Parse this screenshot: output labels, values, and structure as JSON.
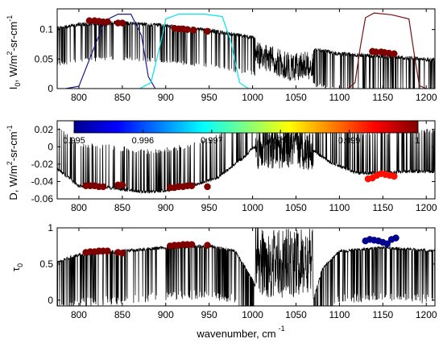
{
  "figure": {
    "xlabel": "wavenumber, cm",
    "xlabel_exp": "-1"
  },
  "chart_data": [
    {
      "type": "line",
      "panel": "top",
      "ylabel": "I₀, W/m²-sr-cm⁻¹",
      "ylabel_parts": [
        "I",
        "0",
        ", W/m",
        "2",
        "-sr-cm",
        "-1"
      ],
      "xlim": [
        775,
        1210
      ],
      "ylim": [
        0,
        0.135
      ],
      "xticks": [
        "800",
        "850",
        "900",
        "950",
        "1000",
        "1050",
        "1100",
        "1150",
        "1200"
      ],
      "yticks": [
        "0",
        "0.05",
        "0.1"
      ],
      "ytick_values": [
        0,
        0.05,
        0.1
      ],
      "series": [
        {
          "kind": "spectrum",
          "color": "#000000",
          "points": [
            [
              775,
              0.105
            ],
            [
              800,
              0.112
            ],
            [
              850,
              0.115
            ],
            [
              900,
              0.11
            ],
            [
              950,
              0.102
            ],
            [
              1000,
              0.09
            ],
            [
              1030,
              0.075
            ],
            [
              1045,
              0.065
            ],
            [
              1060,
              0.07
            ],
            [
              1080,
              0.068
            ],
            [
              1100,
              0.062
            ],
            [
              1150,
              0.058
            ],
            [
              1210,
              0.052
            ]
          ]
        },
        {
          "kind": "filter",
          "color": "#1a1a8c",
          "points": [
            [
              785,
              0.0
            ],
            [
              800,
              0.004
            ],
            [
              815,
              0.06
            ],
            [
              830,
              0.115
            ],
            [
              845,
              0.126
            ],
            [
              860,
              0.126
            ],
            [
              872,
              0.09
            ],
            [
              880,
              0.02
            ],
            [
              888,
              0.0
            ]
          ]
        },
        {
          "kind": "filter",
          "color": "#00e5ee",
          "points": [
            [
              870,
              0.0
            ],
            [
              883,
              0.01
            ],
            [
              893,
              0.07
            ],
            [
              900,
              0.118
            ],
            [
              915,
              0.126
            ],
            [
              945,
              0.126
            ],
            [
              965,
              0.122
            ],
            [
              975,
              0.08
            ],
            [
              985,
              0.01
            ],
            [
              995,
              0.0
            ]
          ]
        },
        {
          "kind": "filter",
          "color": "#7a1010",
          "points": [
            [
              1110,
              0.0
            ],
            [
              1118,
              0.01
            ],
            [
              1124,
              0.07
            ],
            [
              1130,
              0.12
            ],
            [
              1140,
              0.128
            ],
            [
              1160,
              0.125
            ],
            [
              1180,
              0.118
            ],
            [
              1186,
              0.06
            ],
            [
              1192,
              0.005
            ],
            [
              1200,
              0.0
            ]
          ]
        }
      ],
      "markers": {
        "color_value": 1,
        "points": [
          [
            812,
            0.115
          ],
          [
            818,
            0.115
          ],
          [
            823,
            0.114
          ],
          [
            828,
            0.113
          ],
          [
            833,
            0.113
          ],
          [
            845,
            0.111
          ],
          [
            850,
            0.111
          ],
          [
            910,
            0.102
          ],
          [
            915,
            0.101
          ],
          [
            920,
            0.101
          ],
          [
            925,
            0.1
          ],
          [
            932,
            0.099
          ],
          [
            948,
            0.097
          ],
          [
            1138,
            0.063
          ],
          [
            1142,
            0.062
          ],
          [
            1148,
            0.062
          ],
          [
            1152,
            0.061
          ],
          [
            1157,
            0.06
          ],
          [
            1163,
            0.059
          ]
        ]
      }
    },
    {
      "type": "line",
      "panel": "middle",
      "ylabel": "D, W/m²-sr-cm⁻¹",
      "ylabel_parts": [
        "D, W/m",
        "2",
        "-sr-cm",
        "-1"
      ],
      "xlim": [
        775,
        1210
      ],
      "ylim": [
        -0.06,
        0.03
      ],
      "xticks": [
        "800",
        "850",
        "900",
        "950",
        "1000",
        "1050",
        "1100",
        "1150",
        "1200"
      ],
      "yticks": [
        "-0.06",
        "-0.04",
        "-0.02",
        "0",
        "0.02"
      ],
      "ytick_values": [
        -0.06,
        -0.04,
        -0.02,
        0,
        0.02
      ],
      "series": [
        {
          "kind": "spectrum",
          "color": "#000000",
          "points": [
            [
              775,
              -0.025
            ],
            [
              800,
              -0.045
            ],
            [
              830,
              -0.046
            ],
            [
              860,
              -0.05
            ],
            [
              880,
              -0.052
            ],
            [
              900,
              -0.05
            ],
            [
              930,
              -0.045
            ],
            [
              960,
              -0.035
            ],
            [
              990,
              -0.012
            ],
            [
              1000,
              -0.001
            ],
            [
              1050,
              0.0
            ],
            [
              1070,
              -0.004
            ],
            [
              1090,
              -0.018
            ],
            [
              1120,
              -0.03
            ],
            [
              1150,
              -0.03
            ],
            [
              1180,
              -0.028
            ],
            [
              1210,
              -0.028
            ]
          ]
        }
      ],
      "markers_low": {
        "color_value": 1,
        "points": [
          [
            808,
            -0.045
          ],
          [
            813,
            -0.045
          ],
          [
            818,
            -0.045
          ],
          [
            823,
            -0.046
          ],
          [
            828,
            -0.046
          ],
          [
            845,
            -0.044
          ],
          [
            850,
            -0.044
          ],
          [
            905,
            -0.047
          ],
          [
            910,
            -0.047
          ],
          [
            915,
            -0.046
          ],
          [
            920,
            -0.046
          ],
          [
            925,
            -0.045
          ],
          [
            930,
            -0.045
          ],
          [
            948,
            -0.046
          ]
        ]
      },
      "markers_high": {
        "color_value": 0.9993,
        "points": [
          [
            1133,
            -0.037
          ],
          [
            1138,
            -0.036
          ],
          [
            1143,
            -0.033
          ],
          [
            1148,
            -0.031
          ],
          [
            1153,
            -0.032
          ],
          [
            1158,
            -0.033
          ],
          [
            1163,
            -0.034
          ]
        ]
      },
      "colorbar": {
        "range": [
          0.995,
          1.0
        ],
        "ticks": [
          "0.995",
          "0.996",
          "0.997",
          "0.998",
          "0.999",
          "1"
        ],
        "tick_values": [
          0.995,
          0.996,
          0.997,
          0.998,
          0.999,
          1.0
        ]
      }
    },
    {
      "type": "line",
      "panel": "bottom",
      "ylabel": "τ₀",
      "ylabel_parts": [
        "τ",
        "0"
      ],
      "xlim": [
        775,
        1210
      ],
      "ylim": [
        -0.08,
        1.0
      ],
      "xticks": [
        "800",
        "850",
        "900",
        "950",
        "1000",
        "1050",
        "1100",
        "1150",
        "1200"
      ],
      "yticks": [
        "0",
        "0.5",
        "1"
      ],
      "ytick_values": [
        0,
        0.5,
        1
      ],
      "series": [
        {
          "kind": "spectrum",
          "color": "#000000",
          "points": [
            [
              775,
              0.55
            ],
            [
              800,
              0.65
            ],
            [
              850,
              0.7
            ],
            [
              900,
              0.75
            ],
            [
              950,
              0.77
            ],
            [
              980,
              0.7
            ],
            [
              1000,
              0.3
            ],
            [
              1010,
              0.02
            ],
            [
              1070,
              0.02
            ],
            [
              1080,
              0.45
            ],
            [
              1100,
              0.7
            ],
            [
              1150,
              0.75
            ],
            [
              1210,
              0.7
            ]
          ]
        }
      ],
      "markers_low": {
        "color_value": 1,
        "points": [
          [
            808,
            0.66
          ],
          [
            813,
            0.67
          ],
          [
            818,
            0.67
          ],
          [
            823,
            0.68
          ],
          [
            828,
            0.68
          ],
          [
            833,
            0.68
          ],
          [
            845,
            0.66
          ],
          [
            850,
            0.65
          ],
          [
            905,
            0.75
          ],
          [
            910,
            0.76
          ],
          [
            915,
            0.76
          ],
          [
            920,
            0.77
          ],
          [
            925,
            0.77
          ],
          [
            930,
            0.77
          ],
          [
            948,
            0.76
          ]
        ]
      },
      "markers_high": {
        "color_value": 0.995,
        "points": [
          [
            1130,
            0.82
          ],
          [
            1135,
            0.84
          ],
          [
            1140,
            0.83
          ],
          [
            1145,
            0.82
          ],
          [
            1150,
            0.8
          ],
          [
            1155,
            0.78
          ],
          [
            1160,
            0.84
          ],
          [
            1165,
            0.86
          ]
        ]
      }
    }
  ]
}
